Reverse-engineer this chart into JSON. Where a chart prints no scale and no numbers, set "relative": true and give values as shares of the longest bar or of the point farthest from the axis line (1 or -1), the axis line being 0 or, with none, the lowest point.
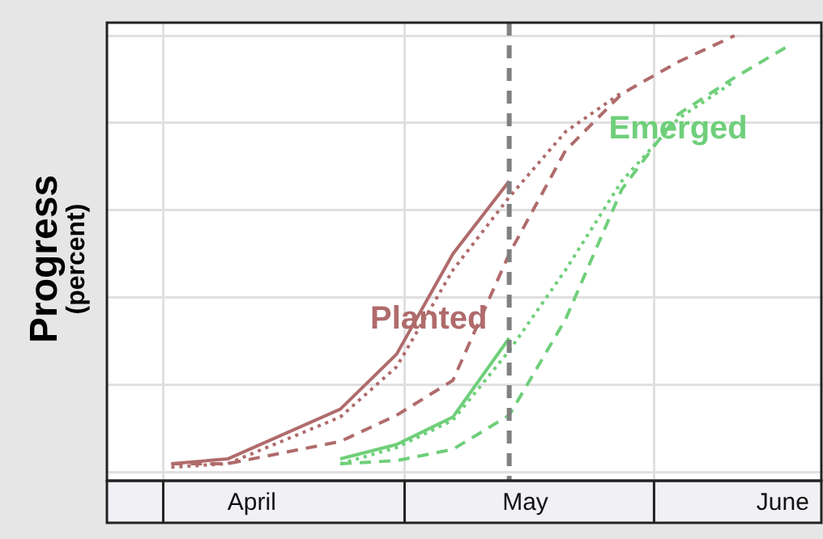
{
  "chart_data": {
    "type": "line",
    "relative": true,
    "ylabel": "Progress\n(percent)",
    "grid": true,
    "xlim": [
      "--03-25",
      "--06-22"
    ],
    "xticks": [
      {
        "value": "--04-01",
        "label": null
      },
      {
        "value": "--04-12",
        "label": "April"
      },
      {
        "value": "--05-01",
        "label": null
      },
      {
        "value": "--05-16",
        "label": "May"
      },
      {
        "value": "--06-01",
        "label": null
      },
      {
        "value": "--06-17",
        "label": "June"
      }
    ],
    "series": [
      {
        "color": "#b06b6b",
        "line_style": "solid",
        "x": [
          "--04-02",
          "--04-09",
          "--04-23",
          "--04-30",
          "--05-07",
          "--05-14"
        ],
        "values": [
          0.019,
          0.03,
          0.144,
          0.27,
          0.5,
          0.667
        ]
      },
      {
        "color": "#b06b6b",
        "line_style": "dotted",
        "x": [
          "--04-02",
          "--04-09",
          "--04-23",
          "--04-30",
          "--05-07",
          "--05-14",
          "--05-21",
          "--05-28"
        ],
        "values": [
          0.011,
          0.019,
          0.126,
          0.241,
          0.463,
          0.63,
          0.78,
          0.87
        ]
      },
      {
        "color": "#b06b6b",
        "line_style": "dashed",
        "x": [
          "--04-02",
          "--04-09",
          "--04-23",
          "--04-30",
          "--05-07",
          "--05-14",
          "--05-21",
          "--05-28",
          "--06-04",
          "--06-11"
        ],
        "values": [
          0.019,
          0.019,
          0.07,
          0.13,
          0.21,
          0.5,
          0.737,
          0.867,
          0.94,
          1.0
        ]
      },
      {
        "color": "#6fcf7a",
        "line_style": "solid",
        "x": [
          "--04-23",
          "--04-30",
          "--05-07",
          "--05-14"
        ],
        "values": [
          0.03,
          0.063,
          0.126,
          0.307
        ]
      },
      {
        "color": "#6fcf7a",
        "line_style": "dotted",
        "x": [
          "--04-23",
          "--04-30",
          "--05-07",
          "--05-14",
          "--05-21",
          "--05-28",
          "--06-04",
          "--06-11"
        ],
        "values": [
          0.019,
          0.056,
          0.119,
          0.278,
          0.463,
          0.667,
          0.81,
          0.896
        ]
      },
      {
        "color": "#6fcf7a",
        "line_style": "dashed",
        "x": [
          "--04-23",
          "--04-30",
          "--05-07",
          "--05-14",
          "--05-21",
          "--05-28",
          "--06-04",
          "--06-11",
          "--06-18"
        ],
        "values": [
          0.019,
          0.026,
          0.052,
          0.13,
          0.35,
          0.648,
          0.82,
          0.904,
          0.98
        ]
      }
    ],
    "ref_lines": [
      {
        "axis": "x",
        "value": "--05-14",
        "color": "#808080",
        "line_style": "dashed"
      }
    ],
    "annotations": [
      {
        "text": "Planted",
        "x": "--05-04",
        "y": 0.35
      },
      {
        "text": "Emerged",
        "x": "--06-04",
        "y": 0.785
      }
    ]
  }
}
